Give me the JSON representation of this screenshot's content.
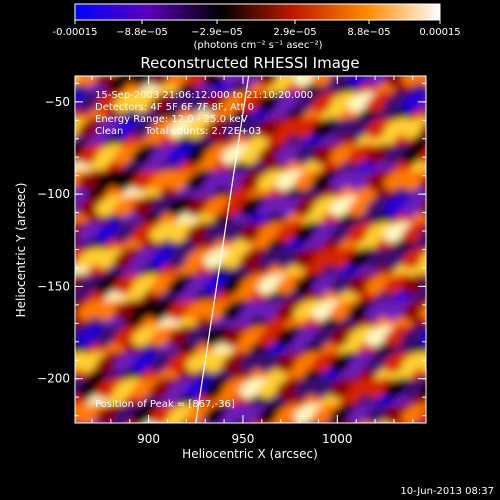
{
  "colorbar": {
    "tick_labels": [
      "-0.00015",
      "−8.8e−05",
      "−2.9e−05",
      "2.9e−05",
      "8.8e−05",
      "0.00015"
    ],
    "units_label": "(photons cm⁻² s⁻¹ asec⁻²)",
    "range": [
      -0.00015,
      0.00015
    ],
    "colors": [
      "#0000ff",
      "#5a00b8",
      "#000000",
      "#c01a00",
      "#ff8a00",
      "#ffffff"
    ]
  },
  "chart_data": {
    "type": "heatmap",
    "title": "Reconstructed RHESSI Image",
    "xlabel": "Heliocentric X (arcsec)",
    "ylabel": "Heliocentric Y (arcsec)",
    "xlim": [
      861,
      1047
    ],
    "ylim": [
      -224,
      -36
    ],
    "x_ticks": [
      900,
      950,
      1000
    ],
    "y_ticks": [
      -50,
      -100,
      -150,
      -200
    ],
    "annotations": {
      "time": "15-Sep-2003 21:06:12.000 to 21:10:20.000",
      "detectors": "Detectors: 4F 5F 6F 7F 8F, Att 0",
      "energy": "Energy Range: 12.0 - 25.0 keV",
      "clean_label": "Clean",
      "total_counts": "Total counts: 2.72E+03",
      "peak": "Position of Peak = [867,-36]"
    },
    "peak_position": [
      867,
      -36
    ],
    "limb_line": [
      [
        925,
        -224
      ],
      [
        953,
        -36
      ]
    ]
  },
  "footer": {
    "date": "10-Jun-2013 08:37"
  }
}
